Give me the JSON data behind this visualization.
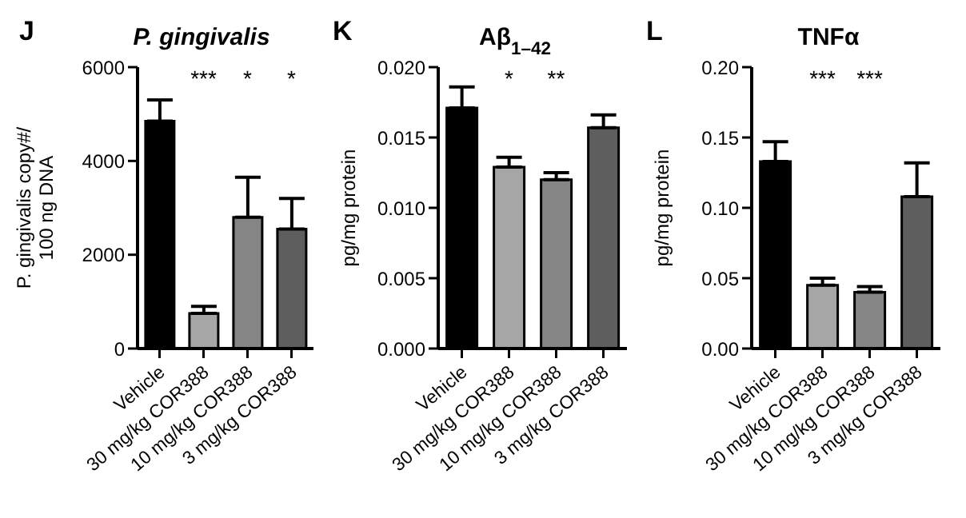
{
  "chart_data": [
    {
      "type": "bar",
      "title": "P. gingivalis",
      "ylabel": "P. gingivalis copy#/\n100 ng DNA",
      "categories": [
        "Vehicle",
        "30 mg/kg COR388",
        "10 mg/kg COR388",
        "3 mg/kg COR388"
      ],
      "values": [
        4850,
        750,
        2800,
        2550
      ],
      "colors": [
        "#000000",
        "#a6a6a6",
        "#858585",
        "#5e5e5e"
      ],
      "errors": [
        [
          4850,
          5300
        ],
        [
          750,
          900
        ],
        [
          2800,
          3650
        ],
        [
          2550,
          3200
        ]
      ],
      "ylim": [
        0,
        6000
      ],
      "yticks": [
        0,
        2000,
        4000,
        6000
      ],
      "grid": false,
      "legend": false,
      "annotations": [
        "J",
        "***",
        "* *"
      ]
    },
    {
      "type": "bar",
      "title": "Aβ$_{1–42}$",
      "ylabel": "pg/mg protein",
      "categories": [
        "Vehicle",
        "30 mg/kg COR388",
        "10 mg/kg COR388",
        "3 mg/kg COR388"
      ],
      "values": [
        0.0171,
        0.0129,
        0.012,
        0.0157
      ],
      "colors": [
        "#000000",
        "#a6a6a6",
        "#858585",
        "#5e5e5e"
      ],
      "errors": [
        [
          0.0171,
          0.0186
        ],
        [
          0.0129,
          0.0136
        ],
        [
          0.012,
          0.0125
        ],
        [
          0.0157,
          0.0166
        ]
      ],
      "ylim": [
        0,
        0.02
      ],
      "yticks": [
        {
          "value": 0,
          "label": "0.000"
        },
        {
          "value": 0.005,
          "label": "0.005"
        },
        {
          "value": 0.01,
          "label": "0.010"
        },
        {
          "value": 0.015,
          "label": "0.015"
        },
        {
          "value": 0.02,
          "label": "0.020"
        }
      ],
      "grid": false,
      "legend": false,
      "annotations": [
        "K",
        "* **"
      ]
    },
    {
      "type": "bar",
      "title": "TNFα",
      "ylabel": "pg/mg protein",
      "categories": [
        "Vehicle",
        "30 mg/kg COR388",
        "10 mg/kg COR388",
        "3 mg/kg COR388"
      ],
      "values": [
        0.133,
        0.045,
        0.04,
        0.108
      ],
      "colors": [
        "#000000",
        "#a6a6a6",
        "#858585",
        "#5e5e5e"
      ],
      "errors": [
        [
          0.133,
          0.147
        ],
        [
          0.045,
          0.05
        ],
        [
          0.04,
          0.044
        ],
        [
          0.108,
          0.132
        ]
      ],
      "ylim": [
        0,
        0.2
      ],
      "yticks": [
        {
          "value": 0,
          "label": "0.00"
        },
        {
          "value": 0.05,
          "label": "0.05"
        },
        {
          "value": 0.1,
          "label": "0.10"
        },
        {
          "value": 0.15,
          "label": "0.15"
        },
        {
          "value": 0.2,
          "label": "0.20"
        }
      ],
      "grid": false,
      "legend": false,
      "annotations": [
        "L",
        "***",
        "***"
      ]
    }
  ]
}
